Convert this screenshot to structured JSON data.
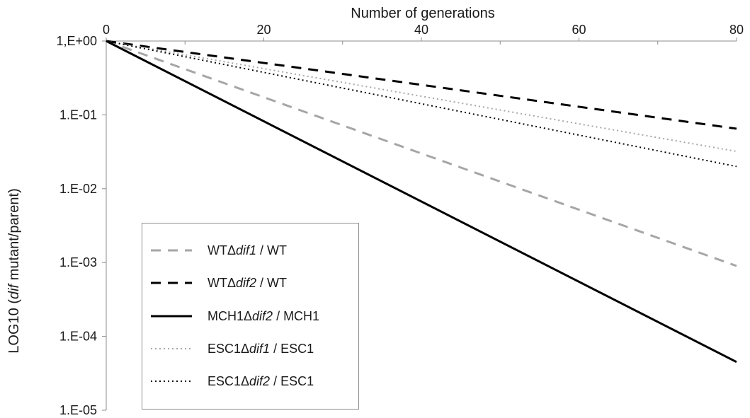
{
  "chart_data": {
    "type": "line",
    "title": "",
    "xlabel": "Number of generations",
    "ylabel_prefix": "LOG10 (",
    "ylabel_italic": "dif",
    "ylabel_suffix": " mutant/parent)",
    "x_axis_position": "top",
    "xlim": [
      0,
      80
    ],
    "x_ticks": [
      0,
      20,
      40,
      60,
      80
    ],
    "x_tick_labels": [
      "0",
      "20",
      "40",
      "60",
      "80"
    ],
    "y_scale": "log",
    "ylim": [
      1e-05,
      1
    ],
    "y_ticks": [
      1,
      0.1,
      0.01,
      0.001,
      0.0001,
      1e-05
    ],
    "y_tick_labels": [
      "1,E+00",
      "1.E-01",
      "1.E-02",
      "1.E-03",
      "1.E-04",
      "1.E-05"
    ],
    "grid": false,
    "legend_position": "bottom-left",
    "series": [
      {
        "name": "WTΔdif1 / WT",
        "name_pre": "WTΔ",
        "name_it": "dif1",
        "name_post": " / WT",
        "x": [
          0,
          80
        ],
        "y": [
          1,
          0.0009
        ],
        "color": "#a6a6a6",
        "dash": "14,10"
      },
      {
        "name": "WTΔdif2 / WT",
        "name_pre": "WTΔ",
        "name_it": "dif2",
        "name_post": " / WT",
        "x": [
          0,
          80
        ],
        "y": [
          1,
          0.065
        ],
        "color": "#000000",
        "dash": "14,10"
      },
      {
        "name": "MCH1Δdif2 / MCH1",
        "name_pre": "MCH1Δ",
        "name_it": "dif2",
        "name_post": " / MCH1",
        "x": [
          0,
          80
        ],
        "y": [
          1,
          4.5e-05
        ],
        "color": "#000000",
        "dash": ""
      },
      {
        "name": "ESC1Δdif1 / ESC1",
        "name_pre": "ESC1Δ",
        "name_it": "dif1",
        "name_post": " / ESC1",
        "x": [
          0,
          80
        ],
        "y": [
          1,
          0.032
        ],
        "color": "#a6a6a6",
        "dash": "2,4"
      },
      {
        "name": "ESC1Δdif2 / ESC1",
        "name_pre": "ESC1Δ",
        "name_it": "dif2",
        "name_post": " / ESC1",
        "x": [
          0,
          80
        ],
        "y": [
          1,
          0.02
        ],
        "color": "#000000",
        "dash": "2,4"
      }
    ]
  }
}
